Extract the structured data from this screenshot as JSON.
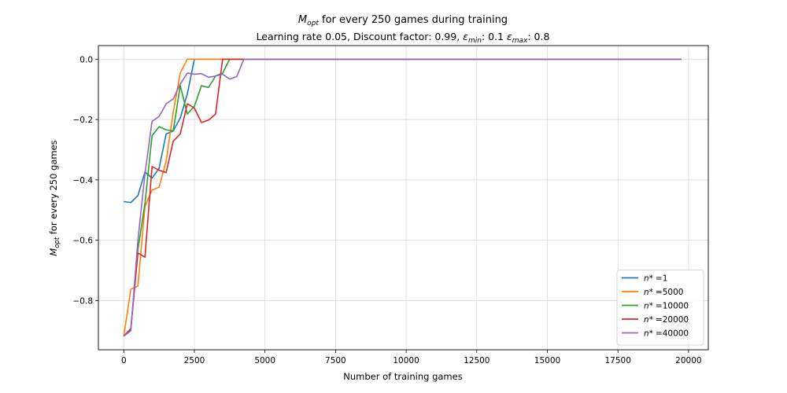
{
  "chart_data": {
    "type": "line",
    "title": "M_opt for every 250 games during training",
    "title_parts": {
      "symbol": "M",
      "sub": "opt",
      "rest": " for every 250 games during training"
    },
    "subtitle": "Learning rate 0.05, Discount factor: 0.99, ε_min: 0.1 ε_max: 0.8",
    "subtitle_parts": {
      "prefix": "Learning rate 0.05, Discount factor: 0.99, ",
      "eps1_sub": "min",
      "mid": ": 0.1 ",
      "eps2_sub": "max",
      "suffix": ": 0.8"
    },
    "xlabel": "Number of training games",
    "ylabel": "M_opt for every 250 games",
    "ylabel_parts": {
      "symbol": "M",
      "sub": "opt",
      "rest": " for every 250 games"
    },
    "xlim": [
      -900,
      20700
    ],
    "ylim": [
      -0.963,
      0.045
    ],
    "xticks": [
      0,
      2500,
      5000,
      7500,
      10000,
      12500,
      15000,
      17500,
      20000
    ],
    "yticks": [
      0.0,
      -0.2,
      -0.4,
      -0.6,
      -0.8
    ],
    "xtick_labels": [
      "0",
      "2500",
      "5000",
      "7500",
      "10000",
      "12500",
      "15000",
      "17500",
      "20000"
    ],
    "ytick_labels": [
      "0.0",
      "−0.2",
      "−0.4",
      "−0.6",
      "−0.8"
    ],
    "grid": true,
    "legend_position": "lower right",
    "series": [
      {
        "name": "n* = 1",
        "legend_prefix": "n*",
        "legend_value": "=1",
        "color": "#1f77b4",
        "x": [
          0,
          250,
          500,
          750,
          1000,
          1250,
          1500,
          1750,
          2000,
          2250,
          2500,
          2750,
          19750
        ],
        "y": [
          -0.472,
          -0.475,
          -0.452,
          -0.374,
          -0.394,
          -0.362,
          -0.248,
          -0.238,
          -0.195,
          -0.115,
          0.0,
          0.0,
          0.0
        ]
      },
      {
        "name": "n* = 5000",
        "legend_prefix": "n*",
        "legend_value": "=5000",
        "color": "#ff7f0e",
        "x": [
          0,
          250,
          500,
          750,
          1000,
          1250,
          1500,
          1750,
          2000,
          2250,
          2500,
          19750
        ],
        "y": [
          -0.918,
          -0.762,
          -0.752,
          -0.488,
          -0.434,
          -0.424,
          -0.338,
          -0.176,
          -0.046,
          0.0,
          0.0,
          0.0
        ]
      },
      {
        "name": "n* = 10000",
        "legend_prefix": "n*",
        "legend_value": "=10000",
        "color": "#2ca02c",
        "x": [
          0,
          250,
          500,
          750,
          1000,
          1250,
          1500,
          1750,
          2000,
          2250,
          2500,
          2750,
          3000,
          3250,
          3500,
          3750,
          19750
        ],
        "y": [
          -0.918,
          -0.893,
          -0.632,
          -0.478,
          -0.254,
          -0.224,
          -0.234,
          -0.238,
          -0.088,
          -0.182,
          -0.156,
          -0.088,
          -0.094,
          -0.056,
          -0.046,
          0.0,
          0.0
        ]
      },
      {
        "name": "n* = 20000",
        "legend_prefix": "n*",
        "legend_value": "=20000",
        "color": "#d62728",
        "x": [
          0,
          250,
          500,
          750,
          1000,
          1250,
          1500,
          1750,
          2000,
          2250,
          2500,
          2750,
          3000,
          3250,
          3500,
          3750,
          19750
        ],
        "y": [
          -0.918,
          -0.893,
          -0.642,
          -0.656,
          -0.356,
          -0.368,
          -0.376,
          -0.272,
          -0.248,
          -0.148,
          -0.162,
          -0.21,
          -0.202,
          -0.182,
          0.0,
          0.0,
          0.0
        ]
      },
      {
        "name": "n* = 40000",
        "legend_prefix": "n*",
        "legend_value": "=40000",
        "color": "#9467bd",
        "x": [
          0,
          250,
          500,
          750,
          1000,
          1250,
          1500,
          1750,
          2000,
          2250,
          2500,
          2750,
          3000,
          3250,
          3500,
          3750,
          4000,
          4250,
          19750
        ],
        "y": [
          -0.918,
          -0.9,
          -0.6,
          -0.38,
          -0.206,
          -0.19,
          -0.148,
          -0.132,
          -0.082,
          -0.046,
          -0.05,
          -0.048,
          -0.06,
          -0.056,
          -0.05,
          -0.066,
          -0.058,
          0.0,
          0.0
        ]
      }
    ]
  }
}
